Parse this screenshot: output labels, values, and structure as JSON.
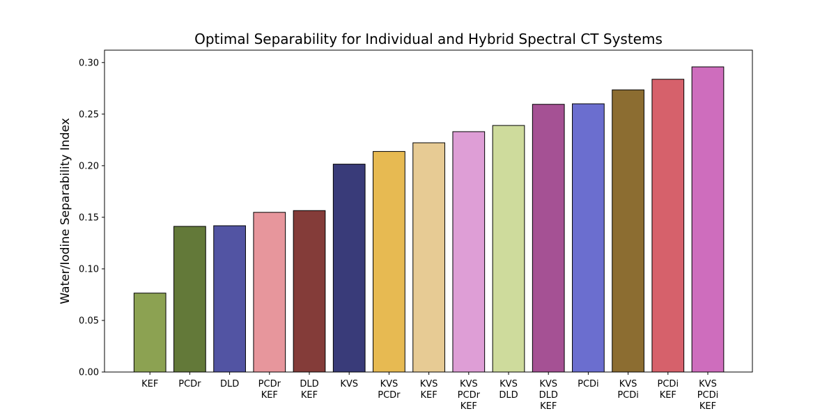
{
  "chart_data": {
    "type": "bar",
    "title": "Optimal Separability for Individual and Hybrid Spectral CT Systems",
    "xlabel": "",
    "ylabel": "Water/Iodine Separability Index",
    "ylim": [
      0,
      0.312
    ],
    "yticks": [
      "0.00",
      "0.05",
      "0.10",
      "0.15",
      "0.20",
      "0.25",
      "0.30"
    ],
    "categories": [
      [
        "KEF"
      ],
      [
        "PCDr"
      ],
      [
        "DLD"
      ],
      [
        "PCDr",
        "KEF"
      ],
      [
        "DLD",
        "KEF"
      ],
      [
        "KVS"
      ],
      [
        "KVS",
        "PCDr"
      ],
      [
        "KVS",
        "KEF"
      ],
      [
        "KVS",
        "PCDr",
        "KEF"
      ],
      [
        "KVS",
        "DLD"
      ],
      [
        "KVS",
        "DLD",
        "KEF"
      ],
      [
        "PCDi"
      ],
      [
        "KVS",
        "PCDi"
      ],
      [
        "PCDi",
        "KEF"
      ],
      [
        "KVS",
        "PCDi",
        "KEF"
      ]
    ],
    "values": [
      0.0765,
      0.1412,
      0.1418,
      0.1548,
      0.1565,
      0.2015,
      0.2138,
      0.2222,
      0.233,
      0.239,
      0.2595,
      0.26,
      0.2735,
      0.2838,
      0.2958
    ],
    "colors": [
      "#8ca252",
      "#637939",
      "#5254a3",
      "#e7969c",
      "#843c39",
      "#393b79",
      "#e7ba52",
      "#e7cb94",
      "#de9ed6",
      "#cedb9c",
      "#a55194",
      "#6b6ecf",
      "#8c6d31",
      "#d6616b",
      "#ce6dbd"
    ],
    "grid": false,
    "legend": "none"
  }
}
